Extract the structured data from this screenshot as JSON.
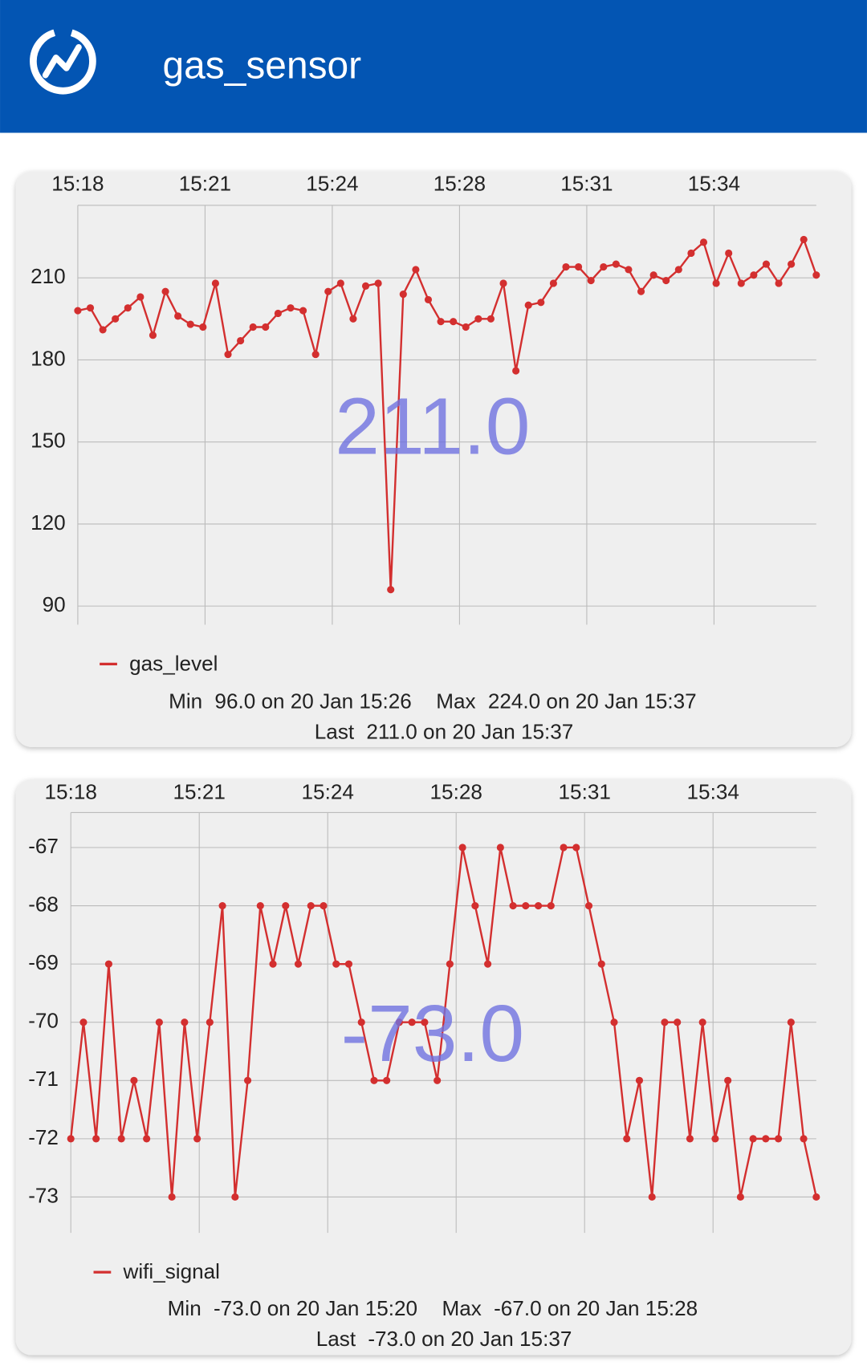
{
  "header": {
    "title": "gas_sensor"
  },
  "chart_data": [
    {
      "type": "line",
      "series": [
        {
          "name": "gas_level",
          "color": "#d32f2f",
          "values": [
            198,
            199,
            191,
            195,
            199,
            203,
            189,
            205,
            196,
            193,
            192,
            208,
            182,
            187,
            192,
            192,
            197,
            199,
            198,
            182,
            205,
            208,
            195,
            207,
            208,
            96,
            204,
            213,
            202,
            194,
            194,
            192,
            195,
            195,
            208,
            176,
            200,
            201,
            208,
            214,
            214,
            209,
            214,
            215,
            213,
            205,
            211,
            209,
            213,
            219,
            223,
            208,
            219,
            208,
            211,
            215,
            208,
            215,
            224,
            211
          ]
        }
      ],
      "xtick_labels": [
        "15:18",
        "15:21",
        "15:24",
        "15:28",
        "15:31",
        "15:34"
      ],
      "ylim": [
        83.5,
        236.5
      ],
      "yticks": [
        90,
        120,
        150,
        180,
        210
      ],
      "grid": true,
      "overlay": "211.0",
      "stats": {
        "min_label": "Min",
        "min": "96.0 on 20 Jan 15:26",
        "max_label": "Max",
        "max": "224.0 on 20 Jan 15:37",
        "last_label": "Last",
        "last": "211.0 on 20 Jan 15:37"
      }
    },
    {
      "type": "line",
      "series": [
        {
          "name": "wifi_signal",
          "color": "#d32f2f",
          "values": [
            -72,
            -70,
            -72,
            -69,
            -72,
            -71,
            -72,
            -70,
            -73,
            -70,
            -72,
            -70,
            -68,
            -73,
            -71,
            -68,
            -69,
            -68,
            -69,
            -68,
            -68,
            -69,
            -69,
            -70,
            -71,
            -71,
            -70,
            -70,
            -70,
            -71,
            -69,
            -67,
            -68,
            -69,
            -67,
            -68,
            -68,
            -68,
            -68,
            -67,
            -67,
            -68,
            -69,
            -70,
            -72,
            -71,
            -73,
            -70,
            -70,
            -72,
            -70,
            -72,
            -71,
            -73,
            -72,
            -72,
            -72,
            -70,
            -72,
            -73
          ]
        }
      ],
      "xtick_labels": [
        "15:18",
        "15:21",
        "15:24",
        "15:28",
        "15:31",
        "15:34"
      ],
      "ylim": [
        -73.6,
        -66.4
      ],
      "yticks": [
        -73,
        -72,
        -71,
        -70,
        -69,
        -68,
        -67
      ],
      "grid": true,
      "overlay": "-73.0",
      "stats": {
        "min_label": "Min",
        "min": "-73.0 on 20 Jan 15:20",
        "max_label": "Max",
        "max": "-67.0 on 20 Jan 15:28",
        "last_label": "Last",
        "last": "-73.0 on 20 Jan 15:37"
      }
    }
  ]
}
